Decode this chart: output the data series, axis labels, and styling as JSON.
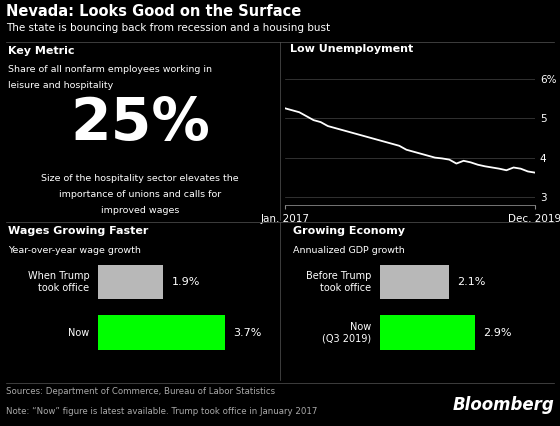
{
  "title": "Nevada: Looks Good on the Surface",
  "subtitle": "The state is bouncing back from recession and a housing bust",
  "bg_color": "#000000",
  "text_color": "#ffffff",
  "gray_color": "#b8b8b8",
  "green_color": "#00ff00",
  "panel_tl_title": "Key Metric",
  "panel_tl_desc1": "Share of all nonfarm employees working in",
  "panel_tl_desc2": "leisure and hospitality",
  "panel_tl_big": "25%",
  "panel_tl_sub1": "Size of the hospitality sector elevates the",
  "panel_tl_sub2": "importance of unions and calls for",
  "panel_tl_sub3": "improved wages",
  "panel_tr_title": "Low Unemployment",
  "panel_tr_xlabel_left": "Jan. 2017",
  "panel_tr_xlabel_right": "Dec. 2019",
  "panel_tr_yticks": [
    3,
    4,
    5,
    6
  ],
  "panel_tr_ylim": [
    2.8,
    6.6
  ],
  "unemp_data": [
    5.25,
    5.2,
    5.15,
    5.05,
    4.95,
    4.9,
    4.8,
    4.75,
    4.7,
    4.65,
    4.6,
    4.55,
    4.5,
    4.45,
    4.4,
    4.35,
    4.3,
    4.2,
    4.15,
    4.1,
    4.05,
    4.0,
    3.98,
    3.95,
    3.85,
    3.92,
    3.88,
    3.82,
    3.78,
    3.75,
    3.72,
    3.68,
    3.75,
    3.72,
    3.65,
    3.62
  ],
  "panel_bl_title": "Wages Growing Faster",
  "panel_bl_subtitle": "Year-over-year wage growth",
  "panel_bl_labels": [
    "When Trump\ntook office",
    "Now"
  ],
  "panel_bl_values": [
    1.9,
    3.7
  ],
  "panel_bl_colors": [
    "#b8b8b8",
    "#00ff00"
  ],
  "panel_bl_value_labels": [
    "1.9%",
    "3.7%"
  ],
  "panel_bl_max": 4.5,
  "panel_br_title": "Growing Economy",
  "panel_br_subtitle": "Annualized GDP growth",
  "panel_br_labels": [
    "Before Trump\ntook office",
    "Now\n(Q3 2019)"
  ],
  "panel_br_values": [
    2.1,
    2.9
  ],
  "panel_br_colors": [
    "#b8b8b8",
    "#00ff00"
  ],
  "panel_br_value_labels": [
    "2.1%",
    "2.9%"
  ],
  "panel_br_max": 4.5,
  "source_text": "Sources: Department of Commerce, Bureau of Labor Statistics",
  "note_text": "Note: “Now” figure is latest available. Trump took office in January 2017",
  "bloomberg_text": "Bloomberg",
  "divider_color": "#555555"
}
